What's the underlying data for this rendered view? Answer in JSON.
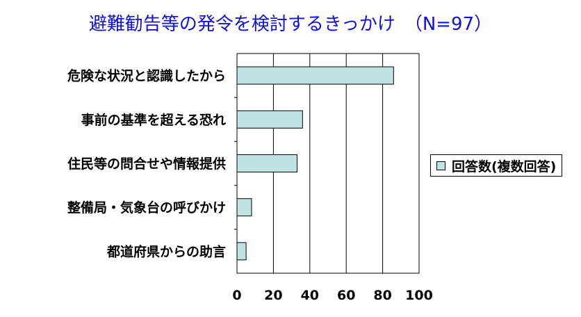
{
  "chart_data": {
    "type": "bar",
    "orientation": "horizontal",
    "title": "避難勧告等の発令を検討するきっかけ　（N=97）",
    "categories": [
      "危険な状況と認識したから",
      "事前の基準を超える恐れ",
      "住民等の問合せや情報提供",
      "整備局・気象台の呼びかけ",
      "都道府県からの助言"
    ],
    "series": [
      {
        "name": "回答数(複数回答)",
        "values": [
          86,
          36,
          33,
          8,
          5
        ]
      }
    ],
    "x_ticks": [
      0,
      20,
      40,
      60,
      80,
      100
    ],
    "xlim": [
      0,
      100
    ],
    "grid": "vertical",
    "legend": "right",
    "colors": {
      "bar": "#bfe3e3",
      "bar_border": "#000000",
      "title": "#1010e0"
    }
  }
}
